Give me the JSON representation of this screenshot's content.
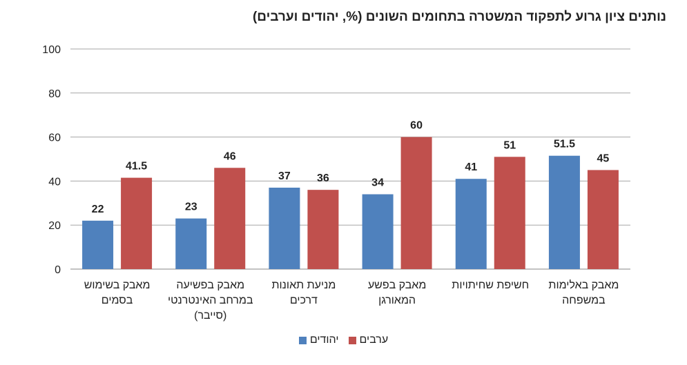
{
  "chart_data": {
    "type": "bar",
    "title": "נותנים ציון גרוע לתפקוד המשטרה בתחומים השונים (%, יהודים וערבים)",
    "categories": [
      [
        "מאבק בשימוש",
        "בסמים"
      ],
      [
        "מאבק בפשיעה",
        "במרחב האינטרנטי",
        "(סייבר)"
      ],
      [
        "מניעת תאונות",
        "דרכים"
      ],
      [
        "מאבק בפשע",
        "המאורגן"
      ],
      [
        "חשיפת שחיתויות"
      ],
      [
        "מאבק באלימות",
        "במשפחה"
      ]
    ],
    "series": [
      {
        "name": "יהודים",
        "color": "#4f81bd",
        "values": [
          22,
          23,
          37,
          34,
          41,
          51.5
        ]
      },
      {
        "name": "ערבים",
        "color": "#c0504d",
        "values": [
          41.5,
          46,
          36,
          60,
          51,
          45
        ]
      }
    ],
    "ylim": [
      0,
      100
    ],
    "yticks": [
      0,
      20,
      40,
      60,
      80,
      100
    ],
    "grid": true,
    "legend": "bottom"
  }
}
